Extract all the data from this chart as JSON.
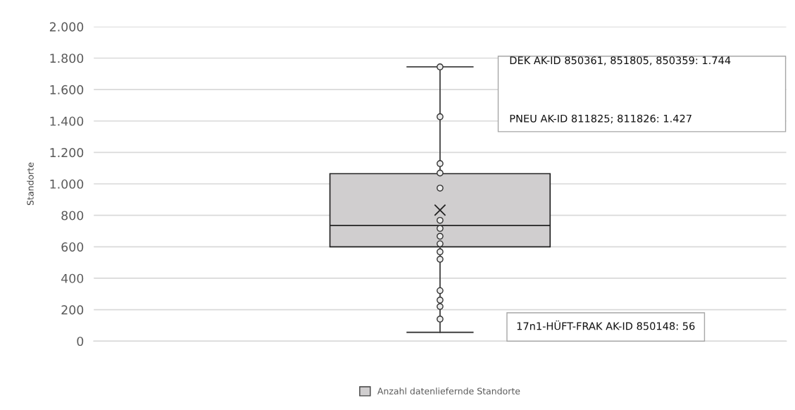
{
  "chart_data": {
    "type": "box",
    "categories": [
      null
    ],
    "ylabel": "Standorte",
    "series": [
      {
        "name": "Anzahl datenliefernde Standorte",
        "color": "#d0cecf",
        "boxes": [
          {
            "low": 56,
            "q1": 600,
            "median": 735,
            "q3": 1065,
            "high": 1744,
            "mean": 833,
            "outliers": [
              1744,
              1427,
              1129,
              1069,
              973,
              768,
              717,
              667,
              619,
              568,
              521,
              321,
              261,
              220,
              140
            ]
          }
        ]
      }
    ],
    "ylim": [
      0,
      2000
    ],
    "yticks": [
      0,
      200,
      400,
      600,
      800,
      {
        "value": 1000,
        "label": "1.000"
      },
      {
        "value": 1200,
        "label": "1.200"
      },
      {
        "value": 1400,
        "label": "1.400"
      },
      {
        "value": 1600,
        "label": "1.600"
      },
      {
        "value": 1800,
        "label": "1.800"
      },
      {
        "value": 2000,
        "label": "2.000"
      }
    ],
    "grid": "y",
    "legend": "bottom",
    "annotations": [
      "DEK AK-ID 850361, 851805, 850359: 1.744",
      "PNEU AK-ID 811825; 811826: 1.427",
      "17n1-HÜFT-FRAK AK-ID 850148: 56"
    ]
  }
}
